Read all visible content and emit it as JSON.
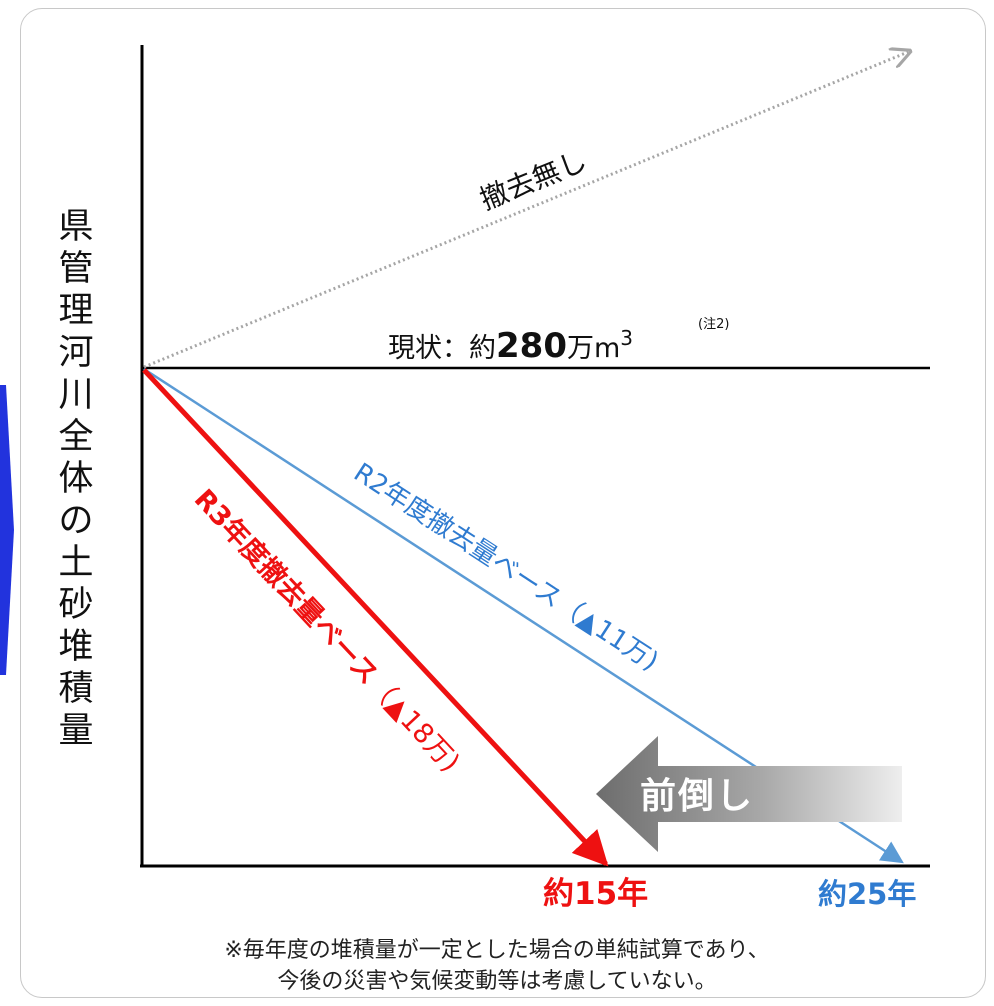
{
  "diagram": {
    "y_axis_label": "県管理河川全体の土砂堆積量",
    "labels": {
      "no_removal": "撤去無し",
      "current_prefix": "現状：約",
      "current_value": "280",
      "current_unit": "万m",
      "current_sup": "3",
      "current_note": "(注2)",
      "r2_main": "R2年度撤去量ベース（",
      "r2_amount": "▲11万)",
      "r3_main": "R3年度撤去量ベース",
      "r3_amount": "（▲18万)",
      "advance": "前倒し",
      "end_r3": "約15年",
      "end_r2": "約25年"
    },
    "colors": {
      "r3": "#ee1111",
      "r2": "#5b9bd5",
      "r2_label": "#2f7bd0",
      "no_removal": "#a6a6a6",
      "axis": "#000000",
      "advance_arrow": "#808080",
      "left_arrow": "#2233dd"
    }
  },
  "footnote": {
    "line1": "※毎年度の堆積量が一定とした場合の単純試算であり、",
    "line2": "今後の災害や気候変動等は考慮していない。"
  }
}
